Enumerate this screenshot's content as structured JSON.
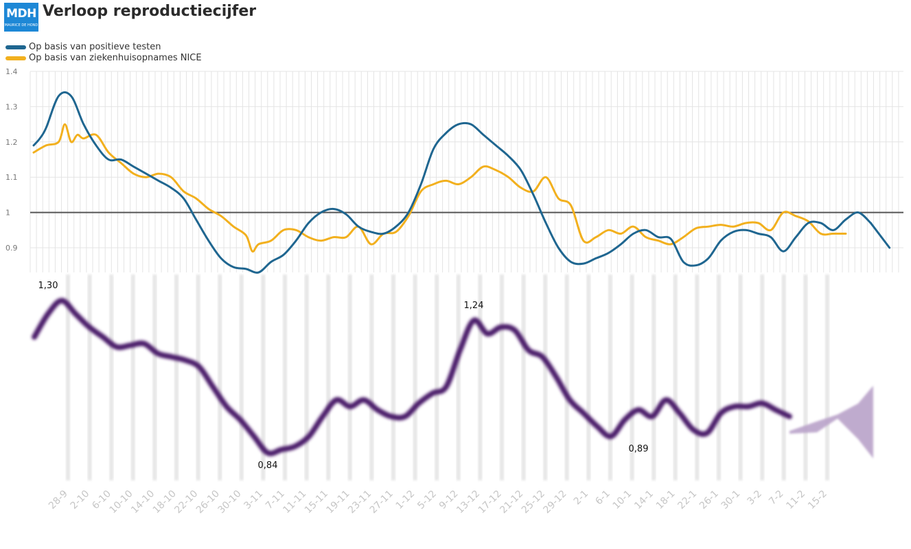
{
  "header": {
    "logo_text": "MDH",
    "logo_subtext": "MAURICE DE HOND",
    "title": "Verloop reproductiecijfer",
    "brand_color": "#1e88d6"
  },
  "chart_data": [
    {
      "type": "line",
      "title": "Verloop reproductiecijfer",
      "legend_placement": "top-left",
      "grid": true,
      "ylim": [
        0.83,
        1.4
      ],
      "yticks": [
        "0.9",
        "1",
        "1.1",
        "1.2",
        "1.3",
        "1.4"
      ],
      "reference_line": 1.0,
      "series": [
        {
          "name": "Op basis van positieve testen",
          "color": "#1f6690",
          "x": [
            0,
            1,
            2,
            4,
            6,
            8,
            10,
            12,
            14,
            16,
            18,
            20,
            22,
            24,
            26,
            28,
            30,
            32,
            34,
            36,
            38,
            40,
            42,
            44,
            46,
            48,
            50,
            52,
            54,
            56,
            58,
            60,
            62,
            64,
            66,
            68,
            70,
            72,
            74,
            76,
            78,
            80,
            82,
            84,
            86,
            88,
            90,
            92,
            94,
            96,
            98,
            100,
            102,
            104,
            106,
            108,
            110,
            112,
            114,
            116,
            118,
            120,
            122,
            124,
            126,
            128,
            130,
            132,
            134
          ],
          "values": [
            1.19,
            1.21,
            1.24,
            1.33,
            1.33,
            1.25,
            1.19,
            1.15,
            1.15,
            1.13,
            1.11,
            1.09,
            1.07,
            1.04,
            0.98,
            0.92,
            0.87,
            0.845,
            0.84,
            0.83,
            0.86,
            0.88,
            0.92,
            0.97,
            1.0,
            1.01,
            0.995,
            0.96,
            0.945,
            0.94,
            0.96,
            1.0,
            1.08,
            1.18,
            1.225,
            1.25,
            1.25,
            1.22,
            1.19,
            1.16,
            1.12,
            1.05,
            0.97,
            0.9,
            0.86,
            0.855,
            0.87,
            0.885,
            0.91,
            0.94,
            0.95,
            0.93,
            0.925,
            0.86,
            0.85,
            0.87,
            0.92,
            0.945,
            0.95,
            0.94,
            0.93,
            0.89,
            0.93,
            0.97,
            0.97,
            0.95,
            0.98,
            1.0,
            0.97
          ],
          "end": {
            "x": 137,
            "value": 0.9
          }
        },
        {
          "name": "Op basis van ziekenhuisopnames NICE",
          "color": "#f2b01e",
          "x": [
            0,
            2,
            4,
            5,
            6,
            7,
            8,
            10,
            12,
            14,
            16,
            18,
            20,
            22,
            24,
            26,
            28,
            30,
            32,
            34,
            35,
            36,
            38,
            40,
            42,
            44,
            46,
            48,
            50,
            52,
            54,
            56,
            58,
            60,
            62,
            64,
            66,
            68,
            70,
            72,
            74,
            76,
            78,
            80,
            82,
            84,
            86,
            88,
            90,
            92,
            94,
            96,
            98,
            100,
            102,
            104,
            106,
            108,
            110,
            112,
            114,
            116,
            118,
            120,
            122,
            124,
            126,
            128,
            130
          ],
          "values": [
            1.17,
            1.19,
            1.2,
            1.25,
            1.2,
            1.22,
            1.21,
            1.22,
            1.17,
            1.14,
            1.11,
            1.1,
            1.11,
            1.1,
            1.06,
            1.04,
            1.01,
            0.99,
            0.96,
            0.935,
            0.89,
            0.91,
            0.92,
            0.95,
            0.95,
            0.93,
            0.92,
            0.93,
            0.93,
            0.96,
            0.91,
            0.94,
            0.945,
            0.99,
            1.06,
            1.08,
            1.09,
            1.08,
            1.1,
            1.13,
            1.12,
            1.1,
            1.07,
            1.06,
            1.1,
            1.04,
            1.02,
            0.92,
            0.93,
            0.95,
            0.94,
            0.96,
            0.93,
            0.92,
            0.91,
            0.93,
            0.955,
            0.96,
            0.965,
            0.96,
            0.97,
            0.97,
            0.95,
            1.0,
            0.99,
            0.975,
            0.94,
            0.94,
            0.94
          ]
        }
      ]
    },
    {
      "type": "line",
      "legend_placement": "none",
      "grid": true,
      "reference_line": 1.0,
      "categories": [
        "28-9",
        "2-10",
        "6-10",
        "10-10",
        "14-10",
        "18-10",
        "22-10",
        "26-10",
        "30-10",
        "3-11",
        "7-11",
        "11-11",
        "15-11",
        "19-11",
        "23-11",
        "27-11",
        "1-12",
        "5-12",
        "9-12",
        "13-12",
        "17-12",
        "21-12",
        "25-12",
        "29-12",
        "2-1",
        "6-1",
        "10-1",
        "14-1",
        "18-1",
        "22-1",
        "26-1",
        "30-1",
        "3-2",
        "7-2",
        "11-2",
        "15-2"
      ],
      "series": [
        {
          "color": "#4b1d6b",
          "x": [
            0,
            2,
            4,
            6,
            8,
            10,
            12,
            14,
            16,
            18,
            20,
            22,
            24,
            26,
            28,
            30,
            32,
            34,
            36,
            38,
            40,
            42,
            44,
            46,
            48,
            50,
            52,
            54,
            56,
            58,
            60,
            62,
            64,
            66,
            68,
            70,
            72,
            74,
            76,
            78,
            80,
            82,
            84,
            86,
            88,
            90,
            92,
            94,
            96,
            98,
            100,
            102,
            104,
            106,
            108,
            110,
            112,
            114,
            116,
            118,
            120
          ],
          "values": [
            1.19,
            1.26,
            1.3,
            1.26,
            1.22,
            1.19,
            1.16,
            1.165,
            1.17,
            1.14,
            1.13,
            1.12,
            1.1,
            1.04,
            0.98,
            0.94,
            0.89,
            0.84,
            0.85,
            0.86,
            0.89,
            0.95,
            1.0,
            0.98,
            1.0,
            0.97,
            0.95,
            0.95,
            0.99,
            1.02,
            1.04,
            1.15,
            1.24,
            1.2,
            1.22,
            1.21,
            1.15,
            1.13,
            1.07,
            1.0,
            0.96,
            0.92,
            0.89,
            0.94,
            0.97,
            0.95,
            1.0,
            0.96,
            0.91,
            0.9,
            0.96,
            0.98,
            0.98,
            0.99,
            0.97,
            0.95,
            0.93,
            0.95,
            0.96,
            0.97,
            0.99
          ]
        }
      ],
      "annotations": [
        {
          "label": "1,30",
          "x": 2,
          "value": 1.3
        },
        {
          "label": "0,84",
          "x": 34,
          "value": 0.84
        },
        {
          "label": "1,24",
          "x": 64,
          "value": 1.24
        },
        {
          "label": "0,89",
          "x": 88,
          "value": 0.89
        }
      ]
    }
  ]
}
